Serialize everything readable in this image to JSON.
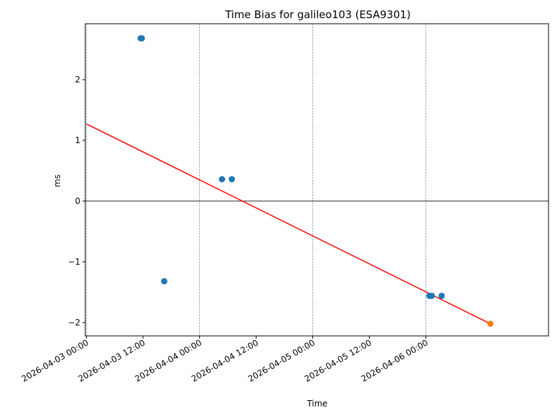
{
  "chart_data": {
    "type": "scatter",
    "title": "Time Bias for galileo103 (ESA9301)",
    "xlabel": "Time",
    "ylabel": "ms",
    "x_ticks": [
      "2026-04-03 00:00",
      "2026-04-03 12:00",
      "2026-04-04 00:00",
      "2026-04-04 12:00",
      "2026-04-05 00:00",
      "2026-04-05 12:00",
      "2026-04-06 00:00"
    ],
    "y_ticks": [
      "−2",
      "−1",
      "0",
      "1",
      "2"
    ],
    "xlim": [
      "2026-04-02 23:45",
      "2026-04-07 02:00"
    ],
    "ylim": [
      -2.22,
      2.92
    ],
    "grid": "vertical dashed lines at day boundaries",
    "zero_line": 0,
    "series": [
      {
        "color": "#1f77b4",
        "points": [
          {
            "x": "2026-04-03 11:30",
            "y": 2.68
          },
          {
            "x": "2026-04-03 11:45",
            "y": 2.68
          },
          {
            "x": "2026-04-03 16:30",
            "y": -1.32
          },
          {
            "x": "2026-04-04 04:45",
            "y": 0.36
          },
          {
            "x": "2026-04-04 06:50",
            "y": 0.36
          },
          {
            "x": "2026-04-06 00:45",
            "y": -1.56
          },
          {
            "x": "2026-04-06 01:15",
            "y": -1.56
          },
          {
            "x": "2026-04-06 03:20",
            "y": -1.56
          }
        ]
      },
      {
        "color": "#ff7f0e",
        "points": [
          {
            "x": "2026-04-06 13:40",
            "y": -2.02
          }
        ]
      }
    ],
    "trend_line": {
      "color": "#ff0000",
      "points": [
        {
          "x": "2026-04-03 00:00",
          "y": 1.27
        },
        {
          "x": "2026-04-06 13:40",
          "y": -2.02
        }
      ]
    }
  }
}
